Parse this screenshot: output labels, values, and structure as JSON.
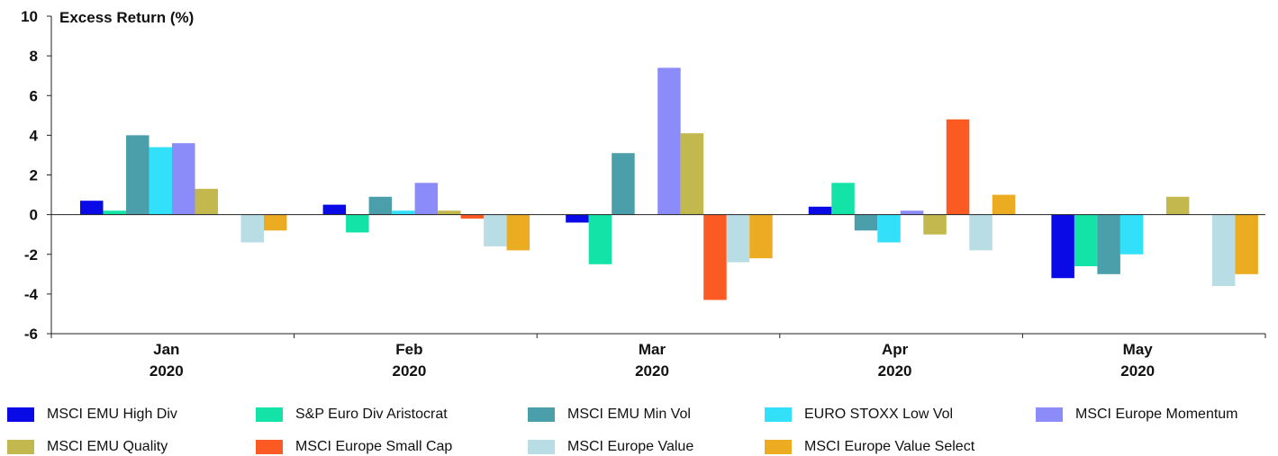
{
  "chart_data": {
    "type": "bar",
    "ylabel": "Excess Return (%)",
    "ylim": [
      -6,
      10
    ],
    "yticks": [
      -6,
      -4,
      -2,
      0,
      2,
      4,
      6,
      8,
      10
    ],
    "legend_position": "bottom",
    "categories": [
      {
        "month": "Jan",
        "year": "2020"
      },
      {
        "month": "Feb",
        "year": "2020"
      },
      {
        "month": "Mar",
        "year": "2020"
      },
      {
        "month": "Apr",
        "year": "2020"
      },
      {
        "month": "May",
        "year": "2020"
      }
    ],
    "series": [
      {
        "name": "MSCI EMU High Div",
        "color": "#0a0ae6",
        "values": [
          0.7,
          0.5,
          -0.4,
          0.4,
          -3.2
        ]
      },
      {
        "name": "S&P Euro Div Aristocrat",
        "color": "#14e3a8",
        "values": [
          0.2,
          -0.9,
          -2.5,
          1.6,
          -2.6
        ]
      },
      {
        "name": "MSCI EMU Min Vol",
        "color": "#4a9fab",
        "values": [
          4.0,
          0.9,
          3.1,
          -0.8,
          -3.0
        ]
      },
      {
        "name": "EURO STOXX Low Vol",
        "color": "#33e0f9",
        "values": [
          3.4,
          0.2,
          0.0,
          -1.4,
          -2.0
        ]
      },
      {
        "name": "MSCI Europe Momentum",
        "color": "#8b8cf9",
        "values": [
          3.6,
          1.6,
          7.4,
          0.2,
          0.0
        ]
      },
      {
        "name": "MSCI EMU Quality",
        "color": "#c3b84e",
        "values": [
          1.3,
          0.2,
          4.1,
          -1.0,
          0.9
        ]
      },
      {
        "name": "MSCI Europe Small Cap",
        "color": "#fb5a22",
        "values": [
          0.0,
          -0.2,
          -4.3,
          4.8,
          0.0
        ]
      },
      {
        "name": "MSCI Europe Value",
        "color": "#b9dde4",
        "values": [
          -1.4,
          -1.6,
          -2.4,
          -1.8,
          -3.6
        ]
      },
      {
        "name": "MSCI Europe Value Select",
        "color": "#ecac22",
        "values": [
          -0.8,
          -1.8,
          -2.2,
          1.0,
          -3.0
        ]
      }
    ]
  }
}
